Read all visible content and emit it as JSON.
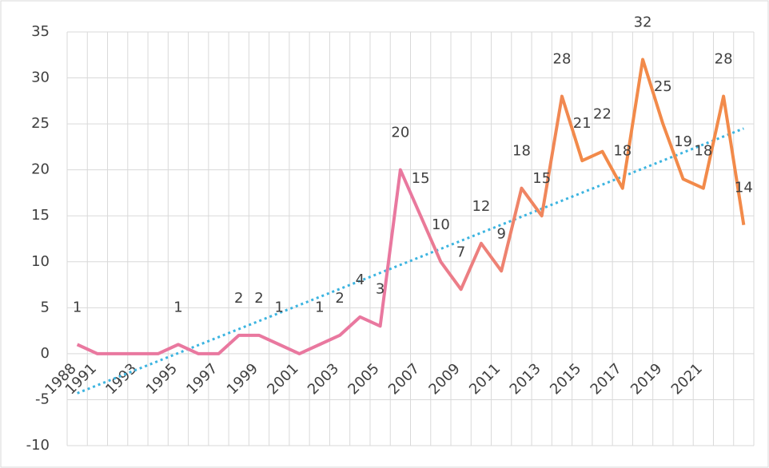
{
  "chart_data": {
    "type": "line",
    "categories": [
      "1988",
      "1991",
      null,
      "1993",
      null,
      "1995",
      null,
      "1997",
      null,
      "1999",
      null,
      "2001",
      null,
      "2003",
      null,
      "2005",
      null,
      "2007",
      null,
      "2009",
      null,
      "2011",
      null,
      "2013",
      null,
      "2015",
      null,
      "2017",
      null,
      "2019",
      null,
      "2021",
      null,
      null
    ],
    "series": [
      {
        "values": [
          1,
          0,
          0,
          0,
          0,
          1,
          0,
          0,
          2,
          2,
          1,
          0,
          1,
          2,
          4,
          3,
          20,
          15,
          10,
          7,
          12,
          9,
          18,
          15,
          28,
          21,
          22,
          18,
          32,
          25,
          19,
          18,
          28,
          14
        ],
        "colors": [
          "#e9789f",
          "#f28a4a"
        ]
      }
    ],
    "trendline": {
      "start": -4.3,
      "end": 24.5,
      "color": "#3cb4e0"
    },
    "ylim": [
      -10,
      35
    ],
    "yticks": [
      -10,
      -5,
      0,
      5,
      10,
      15,
      20,
      25,
      30,
      35
    ],
    "grid": true
  }
}
